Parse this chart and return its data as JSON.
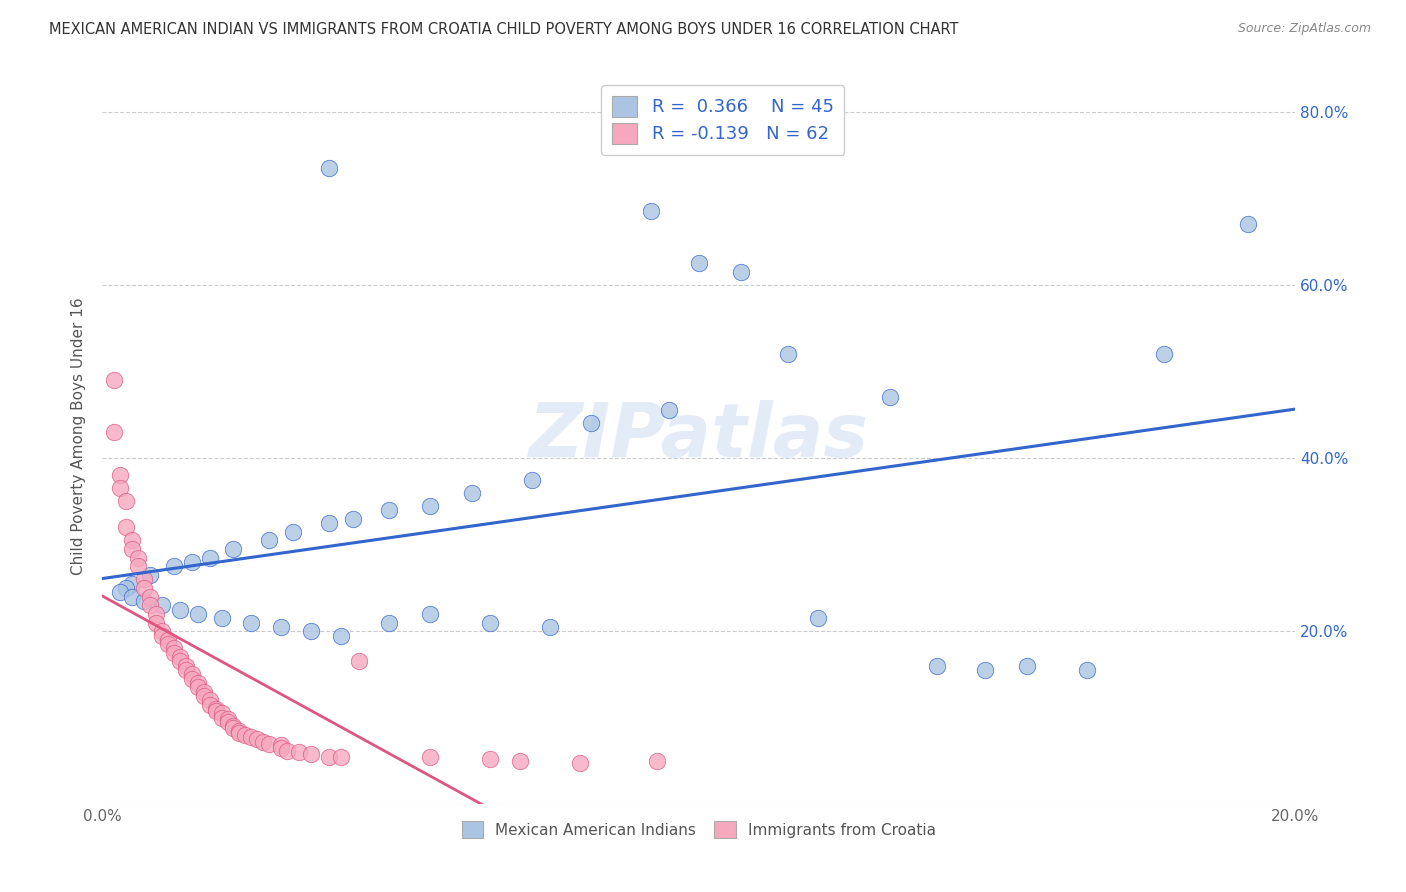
{
  "title": "MEXICAN AMERICAN INDIAN VS IMMIGRANTS FROM CROATIA CHILD POVERTY AMONG BOYS UNDER 16 CORRELATION CHART",
  "source": "Source: ZipAtlas.com",
  "ylabel": "Child Poverty Among Boys Under 16",
  "xlim": [
    0.0,
    0.2
  ],
  "ylim": [
    0.0,
    0.85
  ],
  "color_blue": "#aac4e2",
  "color_pink": "#f5a8be",
  "line_blue": "#3366cc",
  "line_pink": "#e05580",
  "watermark": "ZIPatlas",
  "blue_scatter": [
    [
      0.038,
      0.735
    ],
    [
      0.092,
      0.685
    ],
    [
      0.1,
      0.625
    ],
    [
      0.107,
      0.615
    ],
    [
      0.115,
      0.52
    ],
    [
      0.132,
      0.47
    ],
    [
      0.095,
      0.455
    ],
    [
      0.082,
      0.44
    ],
    [
      0.072,
      0.375
    ],
    [
      0.062,
      0.36
    ],
    [
      0.055,
      0.345
    ],
    [
      0.048,
      0.34
    ],
    [
      0.042,
      0.33
    ],
    [
      0.038,
      0.325
    ],
    [
      0.032,
      0.315
    ],
    [
      0.028,
      0.305
    ],
    [
      0.022,
      0.295
    ],
    [
      0.018,
      0.285
    ],
    [
      0.015,
      0.28
    ],
    [
      0.012,
      0.275
    ],
    [
      0.008,
      0.265
    ],
    [
      0.005,
      0.255
    ],
    [
      0.004,
      0.25
    ],
    [
      0.003,
      0.245
    ],
    [
      0.005,
      0.24
    ],
    [
      0.007,
      0.235
    ],
    [
      0.01,
      0.23
    ],
    [
      0.013,
      0.225
    ],
    [
      0.016,
      0.22
    ],
    [
      0.02,
      0.215
    ],
    [
      0.025,
      0.21
    ],
    [
      0.03,
      0.205
    ],
    [
      0.035,
      0.2
    ],
    [
      0.04,
      0.195
    ],
    [
      0.048,
      0.21
    ],
    [
      0.055,
      0.22
    ],
    [
      0.065,
      0.21
    ],
    [
      0.075,
      0.205
    ],
    [
      0.12,
      0.215
    ],
    [
      0.14,
      0.16
    ],
    [
      0.148,
      0.155
    ],
    [
      0.155,
      0.16
    ],
    [
      0.165,
      0.155
    ],
    [
      0.178,
      0.52
    ],
    [
      0.192,
      0.67
    ]
  ],
  "pink_scatter": [
    [
      0.002,
      0.49
    ],
    [
      0.002,
      0.43
    ],
    [
      0.003,
      0.38
    ],
    [
      0.003,
      0.365
    ],
    [
      0.004,
      0.35
    ],
    [
      0.004,
      0.32
    ],
    [
      0.005,
      0.305
    ],
    [
      0.005,
      0.295
    ],
    [
      0.006,
      0.285
    ],
    [
      0.006,
      0.275
    ],
    [
      0.007,
      0.26
    ],
    [
      0.007,
      0.25
    ],
    [
      0.008,
      0.24
    ],
    [
      0.008,
      0.23
    ],
    [
      0.009,
      0.22
    ],
    [
      0.009,
      0.21
    ],
    [
      0.01,
      0.2
    ],
    [
      0.01,
      0.195
    ],
    [
      0.011,
      0.19
    ],
    [
      0.011,
      0.185
    ],
    [
      0.012,
      0.18
    ],
    [
      0.012,
      0.175
    ],
    [
      0.013,
      0.17
    ],
    [
      0.013,
      0.165
    ],
    [
      0.014,
      0.16
    ],
    [
      0.014,
      0.155
    ],
    [
      0.015,
      0.15
    ],
    [
      0.015,
      0.145
    ],
    [
      0.016,
      0.14
    ],
    [
      0.016,
      0.135
    ],
    [
      0.017,
      0.13
    ],
    [
      0.017,
      0.125
    ],
    [
      0.018,
      0.12
    ],
    [
      0.018,
      0.115
    ],
    [
      0.019,
      0.11
    ],
    [
      0.019,
      0.108
    ],
    [
      0.02,
      0.105
    ],
    [
      0.02,
      0.1
    ],
    [
      0.021,
      0.098
    ],
    [
      0.021,
      0.095
    ],
    [
      0.022,
      0.09
    ],
    [
      0.022,
      0.088
    ],
    [
      0.023,
      0.085
    ],
    [
      0.023,
      0.082
    ],
    [
      0.024,
      0.08
    ],
    [
      0.025,
      0.078
    ],
    [
      0.026,
      0.075
    ],
    [
      0.027,
      0.072
    ],
    [
      0.028,
      0.07
    ],
    [
      0.03,
      0.068
    ],
    [
      0.03,
      0.065
    ],
    [
      0.031,
      0.062
    ],
    [
      0.033,
      0.06
    ],
    [
      0.035,
      0.058
    ],
    [
      0.038,
      0.055
    ],
    [
      0.04,
      0.055
    ],
    [
      0.043,
      0.165
    ],
    [
      0.055,
      0.055
    ],
    [
      0.065,
      0.052
    ],
    [
      0.07,
      0.05
    ],
    [
      0.08,
      0.048
    ],
    [
      0.093,
      0.05
    ]
  ]
}
